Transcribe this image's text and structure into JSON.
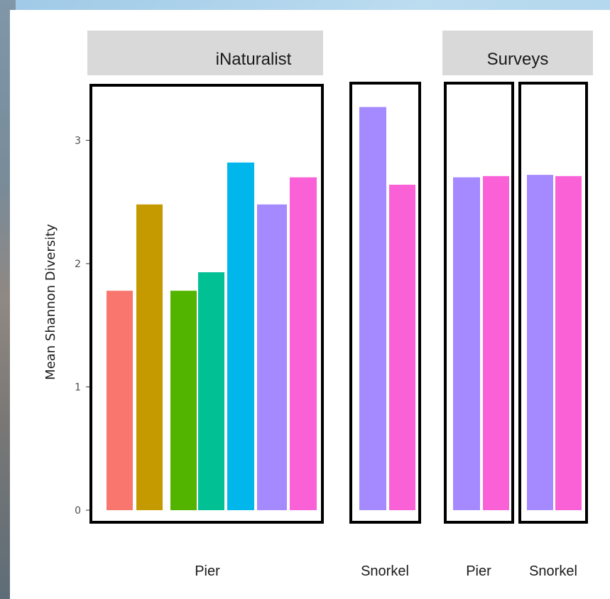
{
  "chart_data": {
    "type": "bar",
    "title": "",
    "ylabel": "Mean Shannon Diversity",
    "ylim": [
      0,
      3.3
    ],
    "y_ticks": [
      0,
      1,
      2,
      3
    ],
    "grid": false,
    "facets": [
      {
        "label": "iNaturalist"
      },
      {
        "label": "Surveys"
      }
    ],
    "groups": [
      {
        "facet": "iNaturalist",
        "xlabel": "Pier",
        "values": [
          1.78,
          2.48,
          1.78,
          1.93,
          2.82,
          2.48,
          2.7
        ],
        "colors": [
          "#F8766D",
          "#C49A00",
          "#53B400",
          "#00C094",
          "#00B6EB",
          "#A58AFF",
          "#FB61D7"
        ]
      },
      {
        "facet": "iNaturalist",
        "xlabel": "Snorkel",
        "values": [
          3.27,
          2.64
        ],
        "colors": [
          "#A58AFF",
          "#FB61D7"
        ]
      },
      {
        "facet": "Surveys",
        "xlabel": "Pier",
        "values": [
          2.7,
          2.71
        ],
        "colors": [
          "#A58AFF",
          "#FB61D7"
        ]
      },
      {
        "facet": "Surveys",
        "xlabel": "Snorkel",
        "values": [
          2.72,
          2.71
        ],
        "colors": [
          "#A58AFF",
          "#FB61D7"
        ]
      }
    ]
  }
}
